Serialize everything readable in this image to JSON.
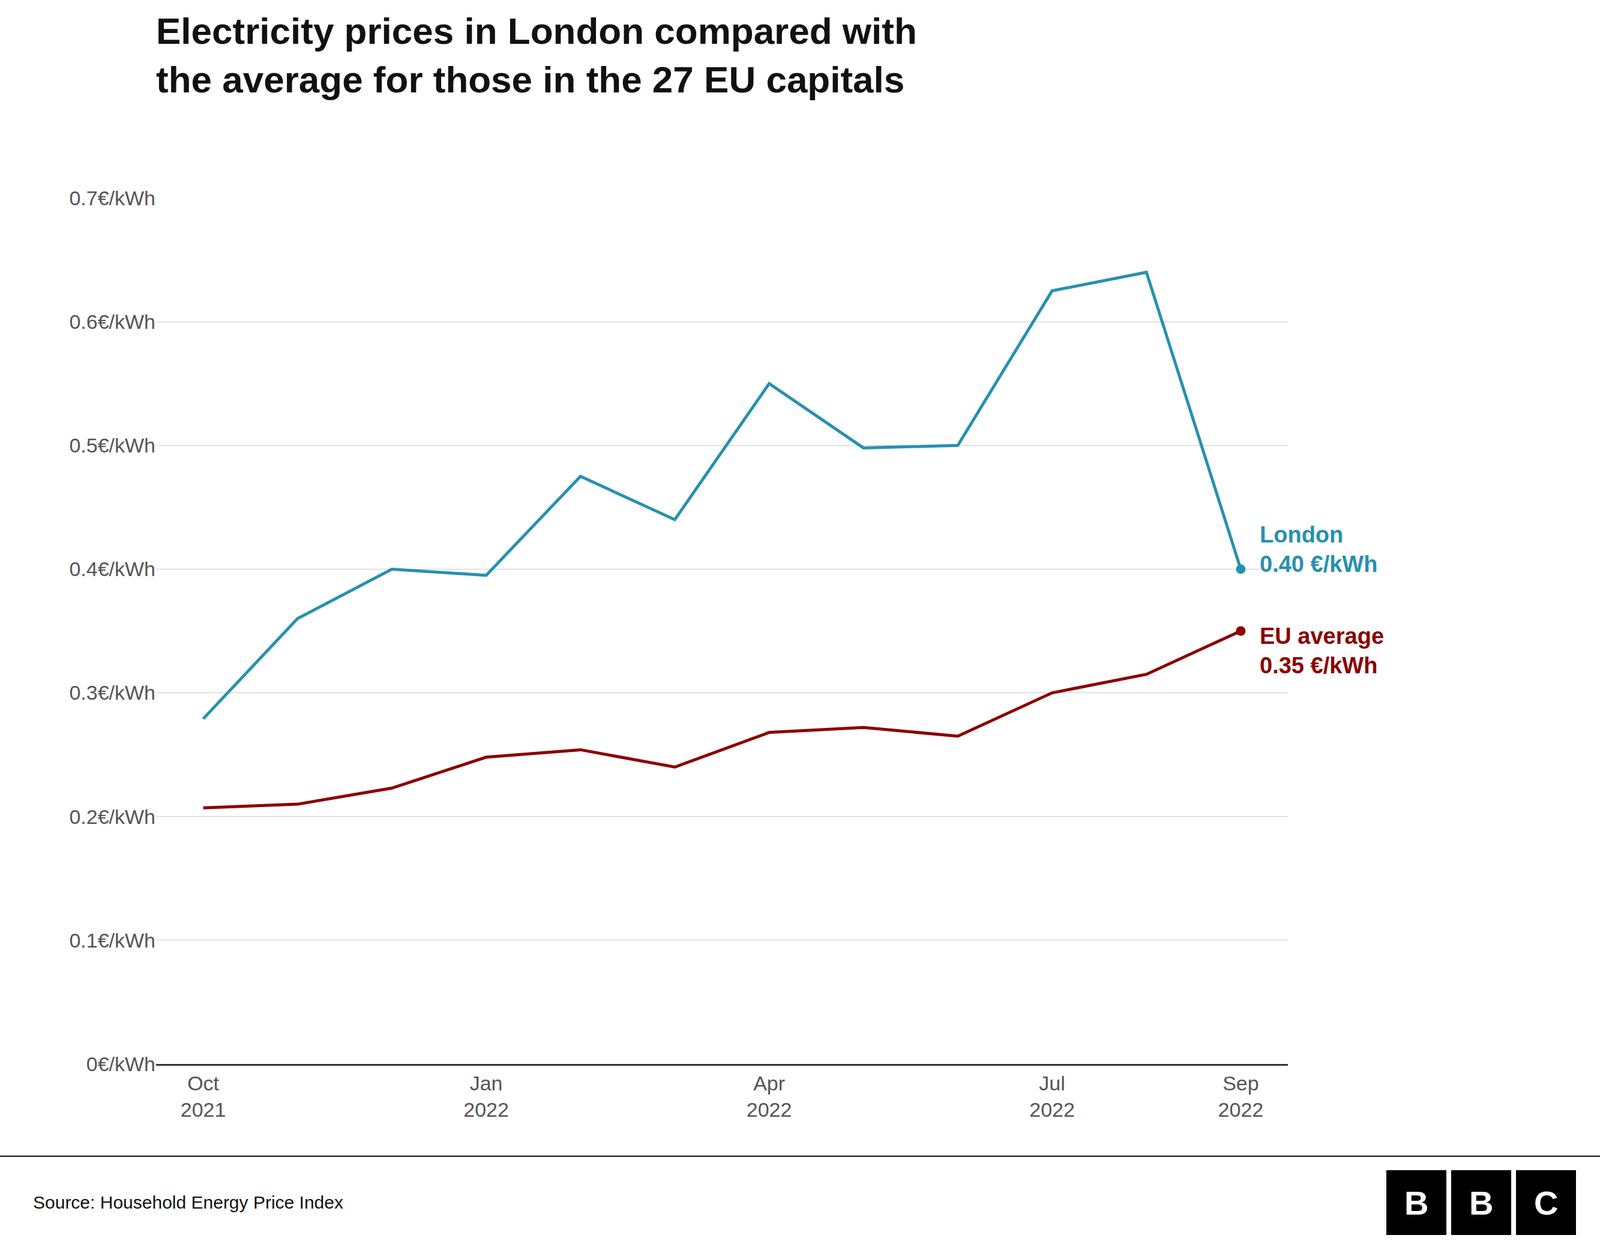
{
  "chart_data": {
    "type": "line",
    "title": "Electricity prices in London compared with\nthe average for those in the 27 EU capitals",
    "source": "Source: Household Energy Price Index",
    "logo": "BBC",
    "categories": [
      "Oct\n2021",
      null,
      null,
      "Jan\n2022",
      null,
      null,
      "Apr\n2022",
      null,
      null,
      "Jul\n2022",
      null,
      "Sep\n2022"
    ],
    "series": [
      {
        "color": "#2790B0",
        "marker": "circle",
        "annotation": "London\n0.40 €/kWh",
        "values": [
          0.279,
          0.36,
          0.4,
          0.395,
          0.475,
          0.44,
          0.55,
          0.498,
          0.5,
          0.625,
          0.64,
          0.4
        ]
      },
      {
        "color": "#8B0000",
        "marker": "circle",
        "annotation": "EU average\n0.35 €/kWh",
        "values": [
          0.207,
          0.21,
          0.223,
          0.248,
          0.254,
          0.24,
          0.268,
          0.272,
          0.265,
          0.3,
          0.315,
          0.35
        ]
      }
    ],
    "ylim": [
      0,
      0.7
    ],
    "yticks": [
      {
        "value": 0.0,
        "label": "0€/kWh"
      },
      {
        "value": 0.1,
        "label": "0.1€/kWh"
      },
      {
        "value": 0.2,
        "label": "0.2€/kWh"
      },
      {
        "value": 0.3,
        "label": "0.3€/kWh"
      },
      {
        "value": 0.4,
        "label": "0.4€/kWh"
      },
      {
        "value": 0.5,
        "label": "0.5€/kWh"
      },
      {
        "value": 0.6,
        "label": "0.6€/kWh"
      },
      {
        "value": 0.7,
        "label": "0.7€/kWh"
      }
    ],
    "grid": true
  }
}
